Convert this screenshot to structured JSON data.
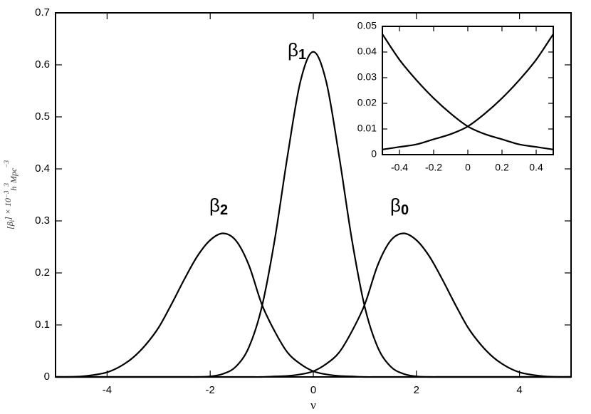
{
  "chart_data": [
    {
      "type": "line",
      "x_label": "ν",
      "y_label": [
        "[β",
        "i",
        "] × 10",
        "−3",
        "h",
        "3",
        "Mpc",
        "−3"
      ],
      "annotations": [
        {
          "text": "β",
          "sub": "1"
        },
        {
          "text": "β",
          "sub": "2"
        },
        {
          "text": "β",
          "sub": "0"
        }
      ],
      "x": [
        -5,
        -4.75,
        -4.5,
        -4.25,
        -4,
        -3.75,
        -3.5,
        -3.25,
        -3,
        -2.75,
        -2.5,
        -2.25,
        -2,
        -1.75,
        -1.5,
        -1.25,
        -1,
        -0.75,
        -0.5,
        -0.25,
        0,
        0.25,
        0.5,
        0.75,
        1,
        1.25,
        1.5,
        1.75,
        2,
        2.25,
        2.5,
        2.75,
        3,
        3.25,
        3.5,
        3.75,
        4,
        4.25,
        4.5,
        4.75,
        5
      ],
      "series": [
        {
          "color": "#000000",
          "values": [
            0,
            0,
            0,
            0,
            0,
            0,
            0,
            0,
            0,
            0,
            0,
            0,
            0.001,
            0.006,
            0.02,
            0.057,
            0.134,
            0.263,
            0.425,
            0.568,
            0.625,
            0.568,
            0.425,
            0.263,
            0.134,
            0.057,
            0.02,
            0.006,
            0.001,
            0,
            0,
            0,
            0,
            0,
            0,
            0,
            0,
            0,
            0,
            0,
            0
          ]
        },
        {
          "color": "#000000",
          "values": [
            0,
            0,
            0.001,
            0.004,
            0.009,
            0.02,
            0.037,
            0.062,
            0.095,
            0.14,
            0.188,
            0.232,
            0.263,
            0.276,
            0.262,
            0.215,
            0.14,
            0.088,
            0.047,
            0.025,
            0.011,
            0.005,
            0.002,
            0.001,
            0,
            0,
            0,
            0,
            0,
            0,
            0,
            0,
            0,
            0,
            0,
            0,
            0,
            0,
            0,
            0,
            0
          ]
        },
        {
          "color": "#000000",
          "values": [
            0,
            0,
            0,
            0,
            0,
            0,
            0,
            0,
            0,
            0,
            0,
            0,
            0,
            0,
            0,
            0,
            0,
            0.001,
            0.002,
            0.005,
            0.011,
            0.025,
            0.047,
            0.088,
            0.14,
            0.215,
            0.262,
            0.276,
            0.263,
            0.232,
            0.188,
            0.14,
            0.095,
            0.062,
            0.037,
            0.02,
            0.009,
            0.004,
            0.001,
            0,
            0
          ]
        }
      ],
      "xlim": [
        -5,
        5
      ],
      "ylim": [
        0,
        0.7
      ],
      "xticks": [
        -4,
        -2,
        0,
        2,
        4
      ],
      "yticks": [
        0,
        0.1,
        0.2,
        0.3,
        0.4,
        0.5,
        0.6,
        0.7
      ]
    },
    {
      "type": "line",
      "x": [
        -0.5,
        -0.4,
        -0.3,
        -0.2,
        -0.1,
        0,
        0.1,
        0.2,
        0.3,
        0.4,
        0.5
      ],
      "series": [
        {
          "color": "#000000",
          "values": [
            0.047,
            0.037,
            0.029,
            0.022,
            0.016,
            0.011,
            0.008,
            0.006,
            0.004,
            0.003,
            0.002
          ]
        },
        {
          "color": "#000000",
          "values": [
            0.002,
            0.003,
            0.004,
            0.006,
            0.008,
            0.011,
            0.016,
            0.022,
            0.029,
            0.037,
            0.047
          ]
        }
      ],
      "xlim": [
        -0.5,
        0.5
      ],
      "ylim": [
        0,
        0.05
      ],
      "xticks": [
        -0.4,
        -0.2,
        0,
        0.2,
        0.4
      ],
      "yticks": [
        0,
        0.01,
        0.02,
        0.03,
        0.04,
        0.05
      ]
    }
  ]
}
